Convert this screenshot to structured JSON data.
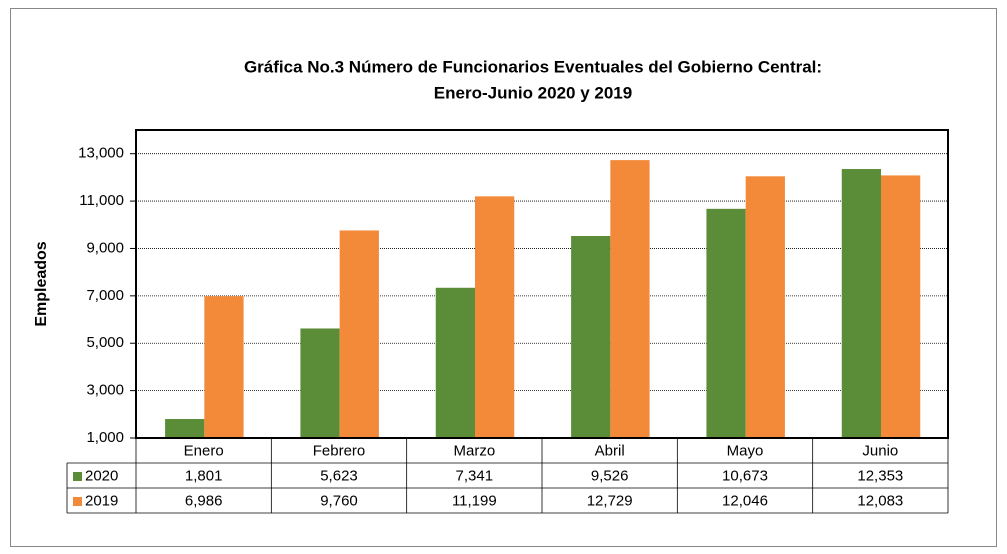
{
  "chart_data": {
    "type": "bar",
    "title": "Gráfica No.3 Número de Funcionarios Eventuales del Gobierno Central:",
    "subtitle": "Enero-Junio 2020 y 2019",
    "y_label": "Empleados",
    "categories": [
      "Enero",
      "Febrero",
      "Marzo",
      "Abril",
      "Mayo",
      "Junio"
    ],
    "series": [
      {
        "name": "2020",
        "color": "#5b8d38",
        "values": [
          1801,
          5623,
          7341,
          9526,
          10673,
          12353
        ],
        "value_labels": [
          "1,801",
          "5,623",
          "7,341",
          "9,526",
          "10,673",
          "12,353"
        ]
      },
      {
        "name": "2019",
        "color": "#f28a3a",
        "values": [
          6986,
          9760,
          11199,
          12729,
          12046,
          12083
        ],
        "value_labels": [
          "6,986",
          "9,760",
          "11,199",
          "12,729",
          "12,046",
          "12,083"
        ]
      }
    ],
    "ylim": [
      1000,
      14000
    ],
    "yticks": [
      {
        "value": 1000,
        "label": "1,000"
      },
      {
        "value": 3000,
        "label": "3,000"
      },
      {
        "value": 5000,
        "label": "5,000"
      },
      {
        "value": 7000,
        "label": "7,000"
      },
      {
        "value": 9000,
        "label": "9,000"
      },
      {
        "value": 11000,
        "label": "11,000"
      },
      {
        "value": 13000,
        "label": "13,000"
      }
    ],
    "grid": true
  }
}
